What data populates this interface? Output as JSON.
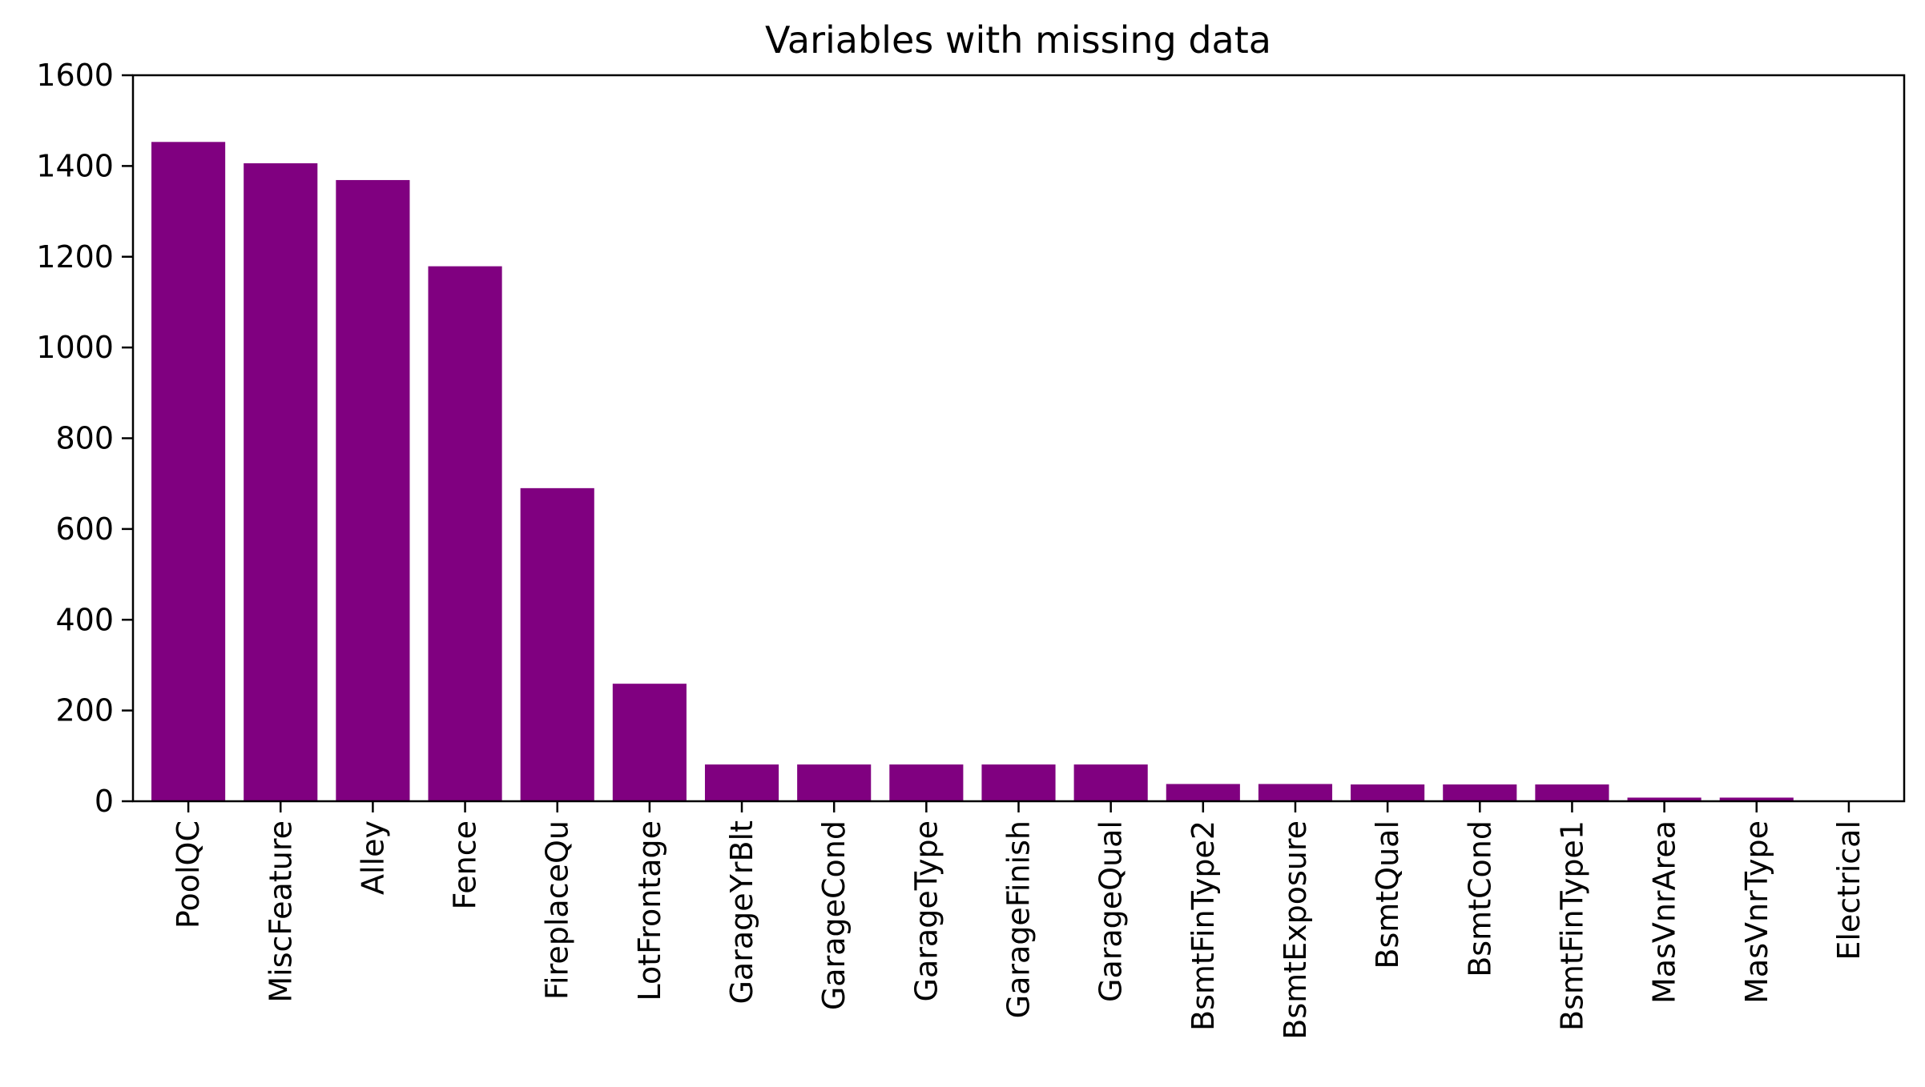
{
  "chart_data": {
    "type": "bar",
    "title": "Variables with missing data",
    "xlabel": "",
    "ylabel": "",
    "ylim": [
      0,
      1600
    ],
    "yticks": [
      0,
      200,
      400,
      600,
      800,
      1000,
      1200,
      1400,
      1600
    ],
    "grid": false,
    "bar_color": "#800080",
    "categories": [
      "PoolQC",
      "MiscFeature",
      "Alley",
      "Fence",
      "FireplaceQu",
      "LotFrontage",
      "GarageYrBlt",
      "GarageCond",
      "GarageType",
      "GarageFinish",
      "GarageQual",
      "BsmtFinType2",
      "BsmtExposure",
      "BsmtQual",
      "BsmtCond",
      "BsmtFinType1",
      "MasVnrArea",
      "MasVnrType",
      "Electrical"
    ],
    "values": [
      1453,
      1406,
      1369,
      1179,
      690,
      259,
      81,
      81,
      81,
      81,
      81,
      38,
      38,
      37,
      37,
      37,
      8,
      8,
      1
    ]
  }
}
